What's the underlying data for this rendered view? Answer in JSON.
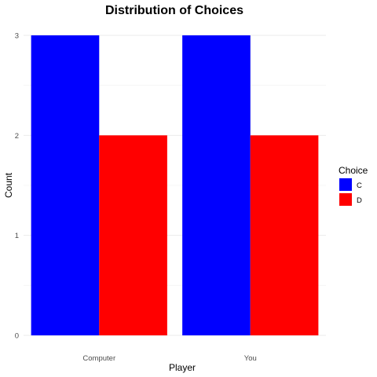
{
  "chart_data": {
    "type": "bar",
    "title": "Distribution of Choices",
    "xlabel": "Player",
    "ylabel": "Count",
    "categories": [
      "Computer",
      "You"
    ],
    "series": [
      {
        "name": "C",
        "values": [
          3,
          3
        ],
        "color": "#0000ff"
      },
      {
        "name": "D",
        "values": [
          2,
          2
        ],
        "color": "#ff0000"
      }
    ],
    "ylim": [
      0,
      3
    ],
    "yticks": [
      0,
      1,
      2,
      3
    ],
    "grid": true,
    "legend": {
      "title": "Choice",
      "position": "right"
    }
  }
}
